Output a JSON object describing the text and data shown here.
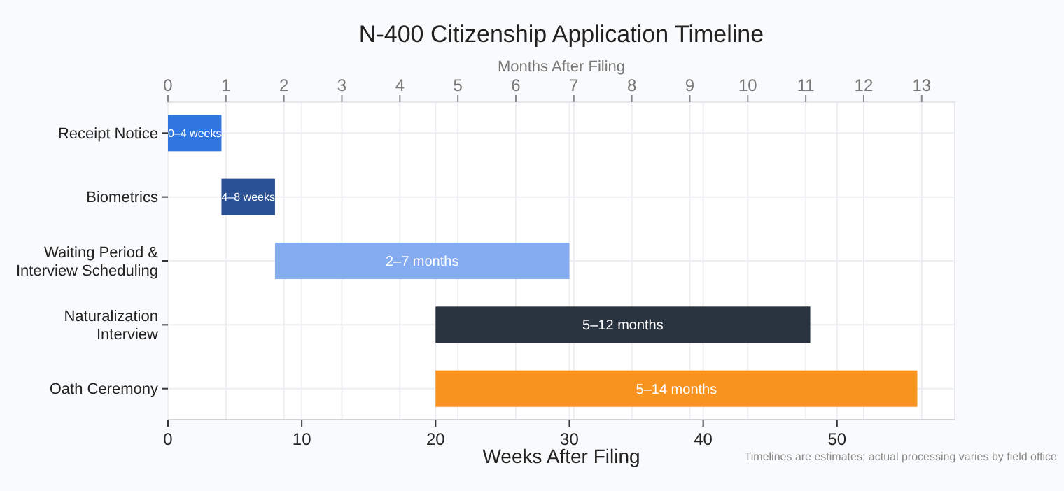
{
  "chart_data": {
    "type": "bar",
    "orientation": "horizontal",
    "title": "N-400 Citizenship Application Timeline",
    "xlabel": "Weeks After Filing",
    "x2label": "Months After Filing",
    "categories": [
      "Receipt Notice",
      "Biometrics",
      "Waiting Period & Interview Scheduling",
      "Naturalization Interview",
      "Oath Ceremony"
    ],
    "base": [
      0,
      4,
      8,
      20,
      20
    ],
    "values": [
      4,
      4,
      22,
      28,
      36
    ],
    "colors": [
      "#2f76e0",
      "#2a5194",
      "#85abf0",
      "#2a3441",
      "#f7931e"
    ],
    "value_labels": [
      "0–4 weeks",
      "4–8 weeks",
      "2–7 months",
      "5–12 months",
      "5–14 months"
    ],
    "xlim": [
      0,
      58.8
    ],
    "xticks": [
      0,
      10,
      20,
      30,
      40,
      50
    ],
    "x2lim": [
      0,
      13.57
    ],
    "x2ticks": [
      0,
      1,
      2,
      3,
      4,
      5,
      6,
      7,
      8,
      9,
      10,
      11,
      12,
      13
    ],
    "grid": true,
    "annotations": [
      "Timelines are estimates; actual processing varies by field office"
    ]
  }
}
